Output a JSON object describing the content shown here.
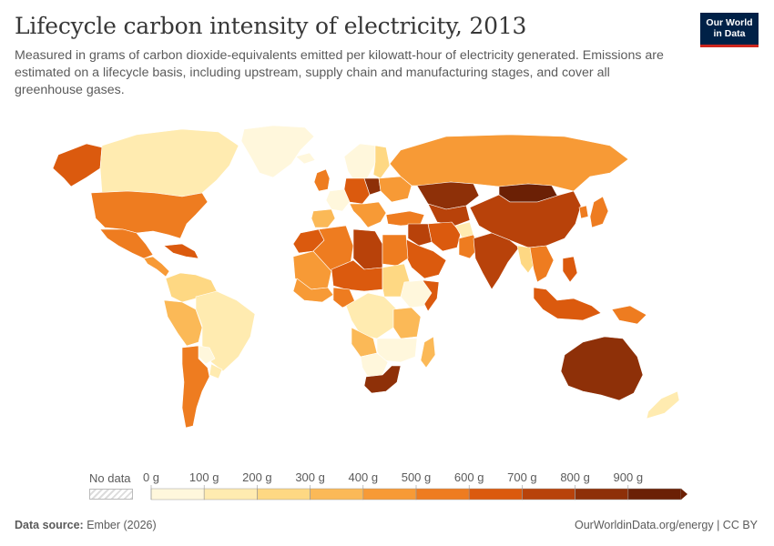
{
  "header": {
    "title": "Lifecycle carbon intensity of electricity, 2013",
    "subtitle": "Measured in grams of carbon dioxide-equivalents emitted per kilowatt-hour of electricity generated. Emissions are estimated on a lifecycle basis, including upstream, supply chain and manufacturing stages, and cover all greenhouse gases."
  },
  "logo": {
    "line1": "Our World",
    "line2": "in Data"
  },
  "legend": {
    "no_data_label": "No data",
    "ticks": [
      "0 g",
      "100 g",
      "200 g",
      "300 g",
      "400 g",
      "500 g",
      "600 g",
      "700 g",
      "800 g",
      "900 g"
    ],
    "colors": [
      "#fff7dc",
      "#ffebb0",
      "#fed883",
      "#fbb957",
      "#f79a36",
      "#ee7c20",
      "#db5a0e",
      "#b8420a",
      "#8e3008",
      "#6b2005"
    ]
  },
  "footer": {
    "source_label": "Data source:",
    "source_value": "Ember (2026)",
    "credit": "OurWorldinData.org/energy | CC BY"
  },
  "regions": [
    {
      "name": "canada",
      "value": 150
    },
    {
      "name": "alaska",
      "value": 600
    },
    {
      "name": "greenland",
      "value": 30
    },
    {
      "name": "united-states",
      "value": 580
    },
    {
      "name": "mexico",
      "value": 560
    },
    {
      "name": "central-america",
      "value": 450
    },
    {
      "name": "caribbean",
      "value": 620
    },
    {
      "name": "colombia-venezuela",
      "value": 220
    },
    {
      "name": "brazil",
      "value": 130
    },
    {
      "name": "peru-bolivia",
      "value": 330
    },
    {
      "name": "paraguay",
      "value": 30
    },
    {
      "name": "argentina-chile",
      "value": 520
    },
    {
      "name": "uruguay",
      "value": 150
    },
    {
      "name": "iceland",
      "value": 30
    },
    {
      "name": "norway-sweden",
      "value": 40
    },
    {
      "name": "finland",
      "value": 200
    },
    {
      "name": "uk-ireland",
      "value": 560
    },
    {
      "name": "france",
      "value": 80
    },
    {
      "name": "spain-portugal",
      "value": 350
    },
    {
      "name": "germany-central-europe",
      "value": 600
    },
    {
      "name": "poland",
      "value": 830
    },
    {
      "name": "italy-balkans",
      "value": 480
    },
    {
      "name": "ukraine-belarus",
      "value": 440
    },
    {
      "name": "russia",
      "value": 480
    },
    {
      "name": "turkey",
      "value": 520
    },
    {
      "name": "kazakhstan",
      "value": 880
    },
    {
      "name": "central-asia",
      "value": 720
    },
    {
      "name": "mongolia",
      "value": 900
    },
    {
      "name": "china",
      "value": 760
    },
    {
      "name": "korea",
      "value": 560
    },
    {
      "name": "japan",
      "value": 560
    },
    {
      "name": "iran",
      "value": 620
    },
    {
      "name": "iraq-syria",
      "value": 700
    },
    {
      "name": "saudi-arabia-gulf",
      "value": 680
    },
    {
      "name": "afghanistan",
      "value": 100
    },
    {
      "name": "pakistan",
      "value": 500
    },
    {
      "name": "india",
      "value": 740
    },
    {
      "name": "myanmar-laos",
      "value": 250
    },
    {
      "name": "thailand-vietnam",
      "value": 540
    },
    {
      "name": "malaysia-indonesia",
      "value": 660
    },
    {
      "name": "philippines",
      "value": 620
    },
    {
      "name": "papua-new-guinea",
      "value": 520
    },
    {
      "name": "australia",
      "value": 800
    },
    {
      "name": "new-zealand",
      "value": 180
    },
    {
      "name": "morocco",
      "value": 650
    },
    {
      "name": "algeria",
      "value": 580
    },
    {
      "name": "libya",
      "value": 720
    },
    {
      "name": "egypt",
      "value": 540
    },
    {
      "name": "mauritania-mali",
      "value": 480
    },
    {
      "name": "niger-chad",
      "value": 640
    },
    {
      "name": "sudan",
      "value": 230
    },
    {
      "name": "west-africa",
      "value": 450
    },
    {
      "name": "nigeria",
      "value": 500
    },
    {
      "name": "ethiopia-east",
      "value": 30
    },
    {
      "name": "somalia",
      "value": 650
    },
    {
      "name": "central-africa",
      "value": 100
    },
    {
      "name": "kenya-tanzania",
      "value": 300
    },
    {
      "name": "angola",
      "value": 350
    },
    {
      "name": "zambia-mozambique",
      "value": 60
    },
    {
      "name": "namibia-botswana",
      "value": 20
    },
    {
      "name": "south-africa",
      "value": 870
    },
    {
      "name": "madagascar",
      "value": 300
    }
  ]
}
